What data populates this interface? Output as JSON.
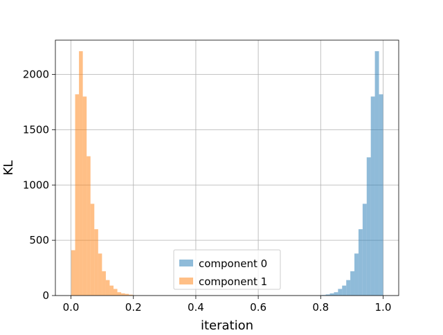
{
  "chart_data": {
    "type": "bar",
    "title": "",
    "xlabel": "iteration",
    "ylabel": "KL",
    "xlim": [
      -0.05,
      1.05
    ],
    "ylim": [
      0,
      2310
    ],
    "xticks": [
      0.0,
      0.2,
      0.4,
      0.6,
      0.8,
      1.0
    ],
    "xtick_labels": [
      "0.0",
      "0.2",
      "0.4",
      "0.6",
      "0.8",
      "1.0"
    ],
    "yticks": [
      0,
      500,
      1000,
      1500,
      2000
    ],
    "ytick_labels": [
      "0",
      "500",
      "1000",
      "1500",
      "2000"
    ],
    "grid": true,
    "legend_position": "bottom-center",
    "series": [
      {
        "name": "component 0",
        "color": "#1f77b4",
        "alpha": 0.5,
        "bin_width": 0.0131,
        "bin_starts": [
          0.8031,
          0.8162,
          0.8294,
          0.8425,
          0.8556,
          0.8687,
          0.8819,
          0.895,
          0.9081,
          0.9212,
          0.9344,
          0.9475,
          0.9606,
          0.9737,
          0.9869
        ],
        "values": [
          5,
          10,
          20,
          30,
          60,
          90,
          140,
          220,
          380,
          600,
          830,
          1250,
          1800,
          2210,
          1820
        ]
      },
      {
        "name": "component 1",
        "color": "#ff7f0e",
        "alpha": 0.5,
        "bin_width": 0.0123,
        "bin_starts": [
          0.001,
          0.0133,
          0.0256,
          0.0379,
          0.0502,
          0.0625,
          0.0748,
          0.0871,
          0.0994,
          0.1117,
          0.124,
          0.1363,
          0.1486,
          0.1609,
          0.1732,
          0.1855
        ],
        "values": [
          410,
          1820,
          2210,
          1800,
          1260,
          830,
          600,
          380,
          220,
          140,
          90,
          60,
          30,
          20,
          15,
          8
        ]
      }
    ]
  }
}
